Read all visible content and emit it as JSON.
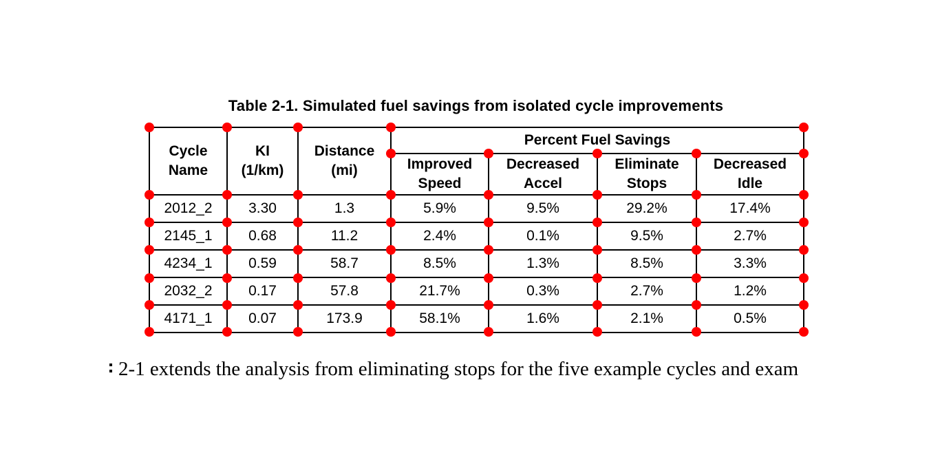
{
  "title": "Table 2-1. Simulated fuel savings from isolated cycle improvements",
  "table": {
    "header": {
      "cycle_name": "Cycle\nName",
      "ki": "KI\n(1/km)",
      "distance": "Distance\n(mi)",
      "group": "Percent Fuel Savings",
      "improved_speed": "Improved\nSpeed",
      "decreased_accel": "Decreased\nAccel",
      "eliminate_stops": "Eliminate\nStops",
      "decreased_idle": "Decreased\nIdle"
    },
    "rows": [
      {
        "cycle_name": "2012_2",
        "ki": "3.30",
        "distance": "1.3",
        "improved_speed": "5.9%",
        "decreased_accel": "9.5%",
        "eliminate_stops": "29.2%",
        "decreased_idle": "17.4%"
      },
      {
        "cycle_name": "2145_1",
        "ki": "0.68",
        "distance": "11.2",
        "improved_speed": "2.4%",
        "decreased_accel": "0.1%",
        "eliminate_stops": "9.5%",
        "decreased_idle": "2.7%"
      },
      {
        "cycle_name": "4234_1",
        "ki": "0.59",
        "distance": "58.7",
        "improved_speed": "8.5%",
        "decreased_accel": "1.3%",
        "eliminate_stops": "8.5%",
        "decreased_idle": "3.3%"
      },
      {
        "cycle_name": "2032_2",
        "ki": "0.17",
        "distance": "57.8",
        "improved_speed": "21.7%",
        "decreased_accel": "0.3%",
        "eliminate_stops": "2.7%",
        "decreased_idle": "1.2%"
      },
      {
        "cycle_name": "4171_1",
        "ki": "0.07",
        "distance": "173.9",
        "improved_speed": "58.1%",
        "decreased_accel": "1.6%",
        "eliminate_stops": "2.1%",
        "decreased_idle": "0.5%"
      }
    ]
  },
  "body_text_fragment": "2-1 extends the analysis from eliminating stops for the five example cycles and exam",
  "annotation": {
    "marker_color": "#ff0000"
  }
}
